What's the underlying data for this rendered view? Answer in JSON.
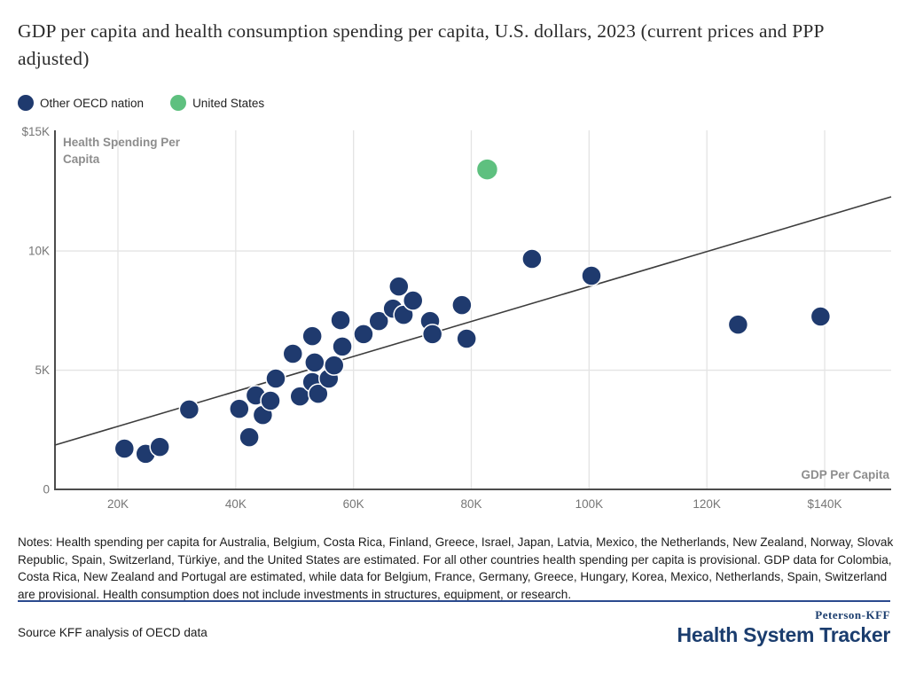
{
  "title": "GDP per capita and health consumption spending per capita, U.S. dollars, 2023 (current prices and PPP adjusted)",
  "legend": {
    "items": [
      {
        "label": "Other OECD nation",
        "color": "#1f3a6e"
      },
      {
        "label": "United States",
        "color": "#5ec07f"
      }
    ]
  },
  "colors": {
    "navy_dot": "#1f3a6e",
    "green_dot": "#5ec07f",
    "grid": "#e4e4e4",
    "axis": "#4c4c4c",
    "trend": "#3d3d3d",
    "tick_text": "#767676",
    "axis_title": "#8d8d8d",
    "footer_rule": "#2b4a8e",
    "logo_navy": "#1b3d6e",
    "dot_outline": "#ffffff"
  },
  "chart_data": {
    "type": "scatter",
    "title": "GDP per capita and health consumption spending per capita, U.S. dollars, 2023 (current prices and PPP adjusted)",
    "xlabel": "GDP Per Capita",
    "ylabel": "Health Spending Per Capita",
    "x_axis": {
      "min": 9310,
      "max": 151290,
      "ticks": [
        {
          "value": 20000,
          "label": "20K"
        },
        {
          "value": 40000,
          "label": "40K"
        },
        {
          "value": 60000,
          "label": "60K"
        },
        {
          "value": 80000,
          "label": "80K"
        },
        {
          "value": 100000,
          "label": "100K"
        },
        {
          "value": 120000,
          "label": "120K"
        },
        {
          "value": 140000,
          "label": "$140K"
        }
      ]
    },
    "y_axis": {
      "min": 0,
      "max": 15060,
      "ticks": [
        {
          "value": 0,
          "label": "0"
        },
        {
          "value": 5000,
          "label": "5K"
        },
        {
          "value": 10000,
          "label": "10K"
        },
        {
          "value": 15000,
          "label": "$15K"
        }
      ],
      "gridline_values": [
        5000,
        10000
      ]
    },
    "series": [
      {
        "name": "Other OECD nation",
        "color": "#1f3a6e",
        "points": [
          {
            "gdp": 21100,
            "health": 1710
          },
          {
            "gdp": 24700,
            "health": 1490
          },
          {
            "gdp": 27100,
            "health": 1780
          },
          {
            "gdp": 32100,
            "health": 3350
          },
          {
            "gdp": 40600,
            "health": 3380
          },
          {
            "gdp": 42300,
            "health": 2190
          },
          {
            "gdp": 43400,
            "health": 3940
          },
          {
            "gdp": 44600,
            "health": 3120
          },
          {
            "gdp": 45900,
            "health": 3720
          },
          {
            "gdp": 46800,
            "health": 4650
          },
          {
            "gdp": 49700,
            "health": 5690
          },
          {
            "gdp": 50900,
            "health": 3900
          },
          {
            "gdp": 53000,
            "health": 4500
          },
          {
            "gdp": 53000,
            "health": 6430
          },
          {
            "gdp": 53400,
            "health": 5320
          },
          {
            "gdp": 54000,
            "health": 4010
          },
          {
            "gdp": 55800,
            "health": 4650
          },
          {
            "gdp": 56700,
            "health": 5200
          },
          {
            "gdp": 57800,
            "health": 7100
          },
          {
            "gdp": 58100,
            "health": 5990
          },
          {
            "gdp": 61700,
            "health": 6510
          },
          {
            "gdp": 64300,
            "health": 7060
          },
          {
            "gdp": 66700,
            "health": 7580
          },
          {
            "gdp": 67700,
            "health": 8510
          },
          {
            "gdp": 68500,
            "health": 7320
          },
          {
            "gdp": 70100,
            "health": 7920
          },
          {
            "gdp": 73000,
            "health": 7060
          },
          {
            "gdp": 73400,
            "health": 6510
          },
          {
            "gdp": 78400,
            "health": 7730
          },
          {
            "gdp": 79200,
            "health": 6320
          },
          {
            "gdp": 90300,
            "health": 9670
          },
          {
            "gdp": 100400,
            "health": 8960
          },
          {
            "gdp": 125300,
            "health": 6910
          },
          {
            "gdp": 139300,
            "health": 7250
          }
        ]
      },
      {
        "name": "United States",
        "color": "#5ec07f",
        "points": [
          {
            "gdp": 82700,
            "health": 13420
          }
        ]
      }
    ],
    "trendline": {
      "x1": 9310,
      "y1": 1860,
      "x2": 151290,
      "y2": 12270
    },
    "legend_position": "top-left",
    "grid": "on"
  },
  "notes": "Notes: Health spending per capita for Australia, Belgium, Costa Rica, Finland, Greece, Israel, Japan, Latvia, Mexico, the Netherlands, New Zealand, Norway, Slovak Republic, Spain, Switzerland, Türkiye, and the United States are estimated. For all other countries health spending per capita is provisional. GDP data for Colombia, Costa Rica, New Zealand and Portugal are estimated, while data for Belgium, France, Germany, Greece, Hungary, Korea, Mexico, Netherlands, Spain, Switzerland are provisional. Health consumption does not include investments in structures, equipment, or research.",
  "source": "Source KFF analysis of OECD data",
  "logo": {
    "top": "Peterson-KFF",
    "main": "Health System Tracker"
  }
}
